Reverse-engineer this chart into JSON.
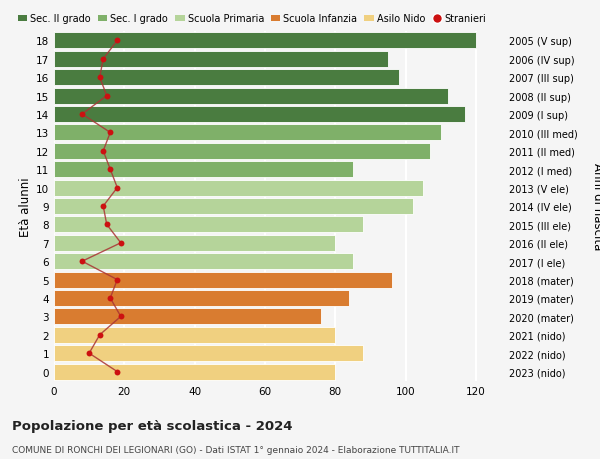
{
  "ages": [
    0,
    1,
    2,
    3,
    4,
    5,
    6,
    7,
    8,
    9,
    10,
    11,
    12,
    13,
    14,
    15,
    16,
    17,
    18
  ],
  "years_bottom_to_top": [
    "2023 (nido)",
    "2022 (nido)",
    "2021 (nido)",
    "2020 (mater)",
    "2019 (mater)",
    "2018 (mater)",
    "2017 (I ele)",
    "2016 (II ele)",
    "2015 (III ele)",
    "2014 (IV ele)",
    "2013 (V ele)",
    "2012 (I med)",
    "2011 (II med)",
    "2010 (III med)",
    "2009 (I sup)",
    "2008 (II sup)",
    "2007 (III sup)",
    "2006 (IV sup)",
    "2005 (V sup)"
  ],
  "bar_values": [
    80,
    88,
    80,
    76,
    84,
    96,
    85,
    80,
    88,
    102,
    105,
    85,
    107,
    110,
    117,
    112,
    98,
    95,
    120
  ],
  "stranieri": [
    18,
    10,
    13,
    19,
    16,
    18,
    8,
    19,
    15,
    14,
    18,
    16,
    14,
    16,
    8,
    15,
    13,
    14,
    18
  ],
  "bar_colors": [
    "#f0d080",
    "#f0d080",
    "#f0d080",
    "#d97c30",
    "#d97c30",
    "#d97c30",
    "#b5d49a",
    "#b5d49a",
    "#b5d49a",
    "#b5d49a",
    "#b5d49a",
    "#7fb069",
    "#7fb069",
    "#7fb069",
    "#4a7c40",
    "#4a7c40",
    "#4a7c40",
    "#4a7c40",
    "#4a7c40"
  ],
  "legend_labels": [
    "Sec. II grado",
    "Sec. I grado",
    "Scuola Primaria",
    "Scuola Infanzia",
    "Asilo Nido",
    "Stranieri"
  ],
  "legend_colors": [
    "#4a7c40",
    "#7fb069",
    "#b5d49a",
    "#d97c30",
    "#f0d080",
    "#cc1111"
  ],
  "stranieri_color": "#cc1111",
  "stranieri_line_color": "#aa3333",
  "title": "Popolazione per età scolastica - 2024",
  "subtitle": "COMUNE DI RONCHI DEI LEGIONARI (GO) - Dati ISTAT 1° gennaio 2024 - Elaborazione TUTTITALIA.IT",
  "ylabel_left": "Età alunni",
  "ylabel_right": "Anni di nascita",
  "xlim": [
    0,
    128
  ],
  "xticks": [
    0,
    20,
    40,
    60,
    80,
    100,
    120
  ],
  "background_color": "#f5f5f5",
  "grid_color": "#ffffff"
}
